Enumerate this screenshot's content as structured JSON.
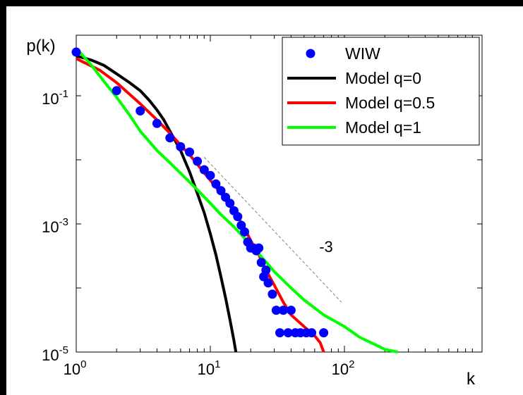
{
  "chart_data": {
    "type": "line",
    "title": "",
    "xlabel": "k",
    "ylabel": "p(k)",
    "xscale": "log",
    "yscale": "log",
    "xlim": [
      1,
      300
    ],
    "ylim": [
      1e-05,
      0.7
    ],
    "grid": false,
    "legend_position": "top-right",
    "x_ticks": [
      {
        "base": "10",
        "exp": "0"
      },
      {
        "base": "10",
        "exp": "1"
      },
      {
        "base": "10",
        "exp": "2"
      }
    ],
    "y_ticks": [
      {
        "base": "10",
        "exp": "-1"
      },
      {
        "base": "10",
        "exp": "-3"
      },
      {
        "base": "10",
        "exp": "-5"
      }
    ],
    "series": [
      {
        "name": "WIW",
        "kind": "scatter",
        "color": "#0000ff",
        "points": [
          [
            1,
            0.48
          ],
          [
            2,
            0.12
          ],
          [
            3,
            0.058
          ],
          [
            4,
            0.037
          ],
          [
            5,
            0.022
          ],
          [
            6,
            0.016
          ],
          [
            7,
            0.0132
          ],
          [
            8,
            0.0095
          ],
          [
            9,
            0.007
          ],
          [
            10,
            0.0057
          ],
          [
            11,
            0.0042
          ],
          [
            12,
            0.0033
          ],
          [
            13,
            0.0026
          ],
          [
            14,
            0.0021
          ],
          [
            15,
            0.0016
          ],
          [
            16,
            0.0013
          ],
          [
            17,
            0.00095
          ],
          [
            18,
            0.00075
          ],
          [
            19,
            0.00052
          ],
          [
            20,
            0.00042
          ],
          [
            21,
            0.00042
          ],
          [
            22,
            0.00038
          ],
          [
            23,
            0.00042
          ],
          [
            24,
            0.00025
          ],
          [
            25,
            0.00015
          ],
          [
            26,
            0.00019
          ],
          [
            27,
            0.00012
          ],
          [
            29,
            8e-05
          ],
          [
            31,
            4.5e-05
          ],
          [
            33,
            2e-05
          ],
          [
            35,
            4.5e-05
          ],
          [
            38,
            2e-05
          ],
          [
            40,
            4.5e-05
          ],
          [
            43,
            2e-05
          ],
          [
            47,
            2e-05
          ],
          [
            52,
            2e-05
          ],
          [
            57,
            2e-05
          ],
          [
            70,
            2e-05
          ]
        ]
      },
      {
        "name": "Model q=0",
        "kind": "line",
        "color": "#000000",
        "points": [
          [
            1,
            0.42
          ],
          [
            1.3,
            0.36
          ],
          [
            1.6,
            0.3
          ],
          [
            2,
            0.22
          ],
          [
            2.5,
            0.16
          ],
          [
            3,
            0.12
          ],
          [
            3.5,
            0.085
          ],
          [
            4,
            0.06
          ],
          [
            4.5,
            0.042
          ],
          [
            5,
            0.028
          ],
          [
            6,
            0.014
          ],
          [
            7,
            0.0065
          ],
          [
            8,
            0.003
          ],
          [
            9,
            0.0015
          ],
          [
            10,
            0.0007
          ],
          [
            11,
            0.00033
          ],
          [
            12,
            0.00015
          ],
          [
            13,
            7e-05
          ],
          [
            14,
            3.2e-05
          ],
          [
            15,
            1.5e-05
          ],
          [
            15.5,
            1e-05
          ]
        ]
      },
      {
        "name": "Model q=0.5",
        "kind": "line",
        "color": "#ff0000",
        "points": [
          [
            1,
            0.38
          ],
          [
            1.5,
            0.25
          ],
          [
            2,
            0.16
          ],
          [
            3,
            0.075
          ],
          [
            4,
            0.042
          ],
          [
            5,
            0.026
          ],
          [
            6,
            0.017
          ],
          [
            7,
            0.012
          ],
          [
            8,
            0.0085
          ],
          [
            10,
            0.0048
          ],
          [
            12,
            0.003
          ],
          [
            14,
            0.0019
          ],
          [
            16,
            0.0013
          ],
          [
            18,
            0.00085
          ],
          [
            20,
            0.00055
          ],
          [
            23,
            0.00033
          ],
          [
            26,
            0.00019
          ],
          [
            30,
            0.00011
          ],
          [
            35,
            6e-05
          ],
          [
            40,
            3.8e-05
          ],
          [
            50,
            2.5e-05
          ],
          [
            60,
            1.8e-05
          ],
          [
            66,
            1.4e-05
          ],
          [
            70,
            1e-05
          ]
        ]
      },
      {
        "name": "Model q=1",
        "kind": "line",
        "color": "#00ff00",
        "points": [
          [
            1,
            0.55
          ],
          [
            1.3,
            0.3
          ],
          [
            1.6,
            0.17
          ],
          [
            2,
            0.095
          ],
          [
            2.5,
            0.05
          ],
          [
            3,
            0.028
          ],
          [
            4,
            0.014
          ],
          [
            5,
            0.009
          ],
          [
            6,
            0.0062
          ],
          [
            8,
            0.0034
          ],
          [
            10,
            0.0021
          ],
          [
            12,
            0.0014
          ],
          [
            15,
            0.0009
          ],
          [
            20,
            0.00047
          ],
          [
            25,
            0.00028
          ],
          [
            30,
            0.00018
          ],
          [
            40,
            0.0001
          ],
          [
            50,
            6.5e-05
          ],
          [
            70,
            3.8e-05
          ],
          [
            100,
            2.5e-05
          ],
          [
            130,
            1.7e-05
          ],
          [
            170,
            1.3e-05
          ],
          [
            200,
            1.1e-05
          ],
          [
            250,
            1e-05
          ]
        ]
      }
    ],
    "reference_line": {
      "label": "-3",
      "color": "#808080",
      "from": [
        9,
        0.011
      ],
      "to": [
        95,
        6e-05
      ]
    }
  }
}
